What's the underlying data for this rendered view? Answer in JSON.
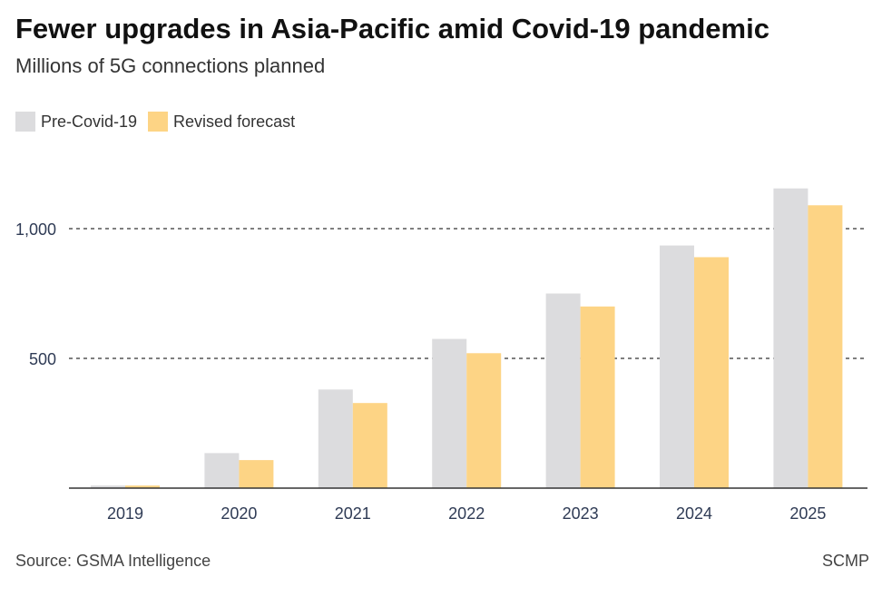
{
  "title": "Fewer upgrades in Asia-Pacific amid Covid-19 pandemic",
  "subtitle": "Millions of 5G connections planned",
  "source": "Source: GSMA Intelligence",
  "credit": "SCMP",
  "chart_data": {
    "type": "bar",
    "categories": [
      "2019",
      "2020",
      "2021",
      "2022",
      "2023",
      "2024",
      "2025"
    ],
    "series": [
      {
        "name": "Pre-Covid-19",
        "color": "#dcdcde",
        "values": [
          10,
          135,
          380,
          575,
          750,
          935,
          1155
        ]
      },
      {
        "name": "Revised forecast",
        "color": "#fdd485",
        "values": [
          10,
          108,
          328,
          520,
          700,
          890,
          1090
        ]
      }
    ],
    "yticks": [
      500,
      1000
    ],
    "ytick_labels": [
      "500",
      "1,000"
    ],
    "ylim": [
      0,
      1200
    ],
    "grid": "dashed horizontal",
    "legend": "top-left"
  }
}
